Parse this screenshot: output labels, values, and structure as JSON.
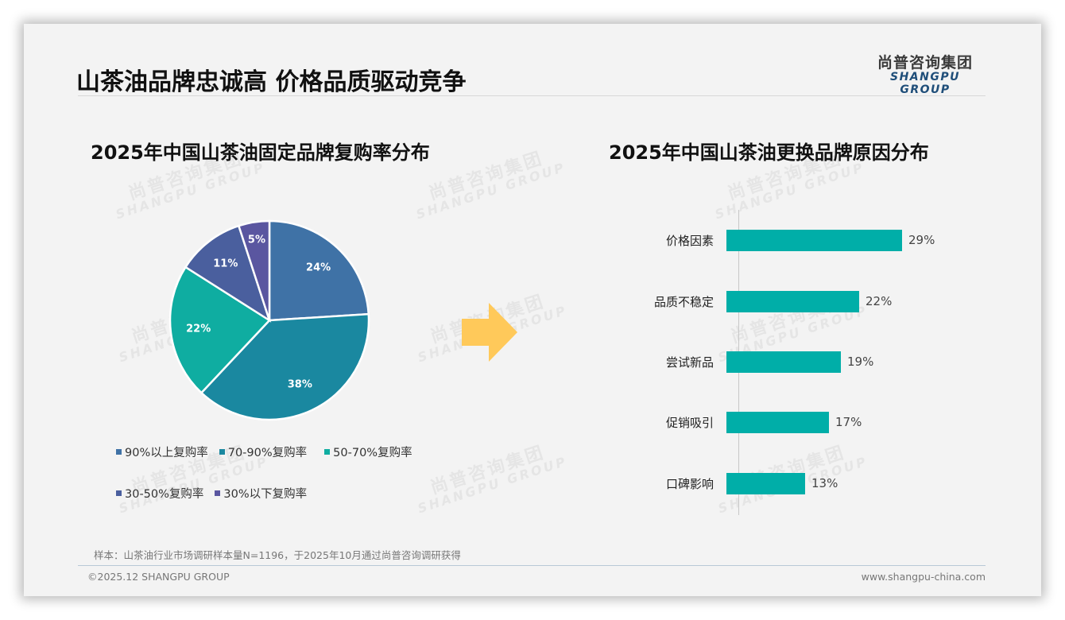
{
  "header": {
    "title": "山茶油品牌忠诚高 价格品质驱动竞争",
    "logo_cn": "尚普咨询集团",
    "logo_en": "SHANGPU GROUP"
  },
  "watermark": {
    "cn": "尚普咨询集团",
    "en": "SHANGPU GROUP"
  },
  "left_chart": {
    "title": "2025年中国山茶油固定品牌复购率分布",
    "slices": [
      {
        "label": "90%以上复购率",
        "value": 24,
        "display": "24%",
        "color": "#3f72a6"
      },
      {
        "label": "70-90%复购率",
        "value": 38,
        "display": "38%",
        "color": "#1a88a0"
      },
      {
        "label": "50-70%复购率",
        "value": 22,
        "display": "22%",
        "color": "#0fada1"
      },
      {
        "label": "30-50%复购率",
        "value": 11,
        "display": "11%",
        "color": "#4a5f9e"
      },
      {
        "label": "30%以下复购率",
        "value": 5,
        "display": "5%",
        "color": "#5a56a0"
      }
    ]
  },
  "right_chart": {
    "title": "2025年中国山茶油更换品牌原因分布",
    "bars": [
      {
        "label": "价格因素",
        "value": 29,
        "display": "29%"
      },
      {
        "label": "品质不稳定",
        "value": 22,
        "display": "22%"
      },
      {
        "label": "尝试新品",
        "value": 19,
        "display": "19%"
      },
      {
        "label": "促销吸引",
        "value": 17,
        "display": "17%"
      },
      {
        "label": "口碑影响",
        "value": 13,
        "display": "13%"
      }
    ],
    "bar_color": "#00aea8"
  },
  "footer": {
    "note": "样本：山茶油行业市场调研样本量N=1196，于2025年10月通过尚普咨询调研获得",
    "copyright": "©2025.12 SHANGPU GROUP",
    "website": "www.shangpu-china.com"
  },
  "chart_data": [
    {
      "type": "pie",
      "title": "2025年中国山茶油固定品牌复购率分布",
      "categories": [
        "90%以上复购率",
        "70-90%复购率",
        "50-70%复购率",
        "30-50%复购率",
        "30%以下复购率"
      ],
      "values": [
        24,
        38,
        22,
        11,
        5
      ],
      "unit": "%",
      "legend_position": "bottom"
    },
    {
      "type": "bar",
      "orientation": "horizontal",
      "title": "2025年中国山茶油更换品牌原因分布",
      "categories": [
        "价格因素",
        "品质不稳定",
        "尝试新品",
        "促销吸引",
        "口碑影响"
      ],
      "values": [
        29,
        22,
        19,
        17,
        13
      ],
      "unit": "%",
      "xlabel": "",
      "ylabel": "",
      "grid": false
    }
  ]
}
